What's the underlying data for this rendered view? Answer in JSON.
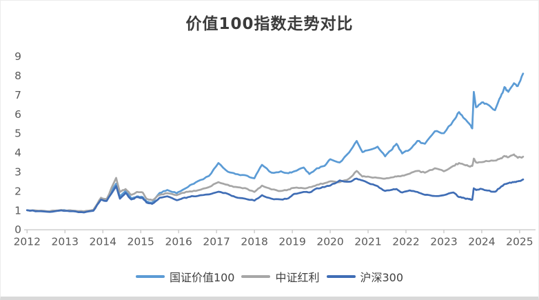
{
  "page": {
    "title": "价值100指数走势对比"
  },
  "axes": {
    "y_tick_color": "#595959",
    "x_tick_color": "#595959",
    "axis_line_color": "#c9c9c9"
  },
  "chart_data": {
    "type": "line",
    "title": "价值100指数走势对比",
    "xlabel": "",
    "ylabel": "",
    "xlim": [
      2012,
      2025.4
    ],
    "ylim": [
      0,
      9
    ],
    "grid": false,
    "legend_position": "bottom",
    "x_ticks": [
      2012,
      2013,
      2014,
      2015,
      2016,
      2017,
      2018,
      2019,
      2020,
      2021,
      2022,
      2023,
      2024,
      2025
    ],
    "y_ticks": [
      0,
      1,
      2,
      3,
      4,
      5,
      6,
      7,
      8,
      9
    ],
    "x": [
      2012.0,
      2012.3,
      2012.6,
      2012.9,
      2013.2,
      2013.5,
      2013.75,
      2013.95,
      2014.1,
      2014.35,
      2014.45,
      2014.6,
      2014.75,
      2014.9,
      2015.05,
      2015.15,
      2015.3,
      2015.5,
      2015.7,
      2015.95,
      2016.1,
      2016.3,
      2016.5,
      2016.8,
      2017.05,
      2017.3,
      2017.5,
      2017.75,
      2018.0,
      2018.2,
      2018.45,
      2018.7,
      2018.9,
      2019.05,
      2019.3,
      2019.45,
      2019.65,
      2019.85,
      2020.0,
      2020.25,
      2020.5,
      2020.7,
      2020.85,
      2021.0,
      2021.25,
      2021.45,
      2021.6,
      2021.75,
      2021.9,
      2022.1,
      2022.3,
      2022.5,
      2022.76,
      2023.0,
      2023.25,
      2023.4,
      2023.55,
      2023.67,
      2023.75,
      2023.79,
      2023.85,
      2024.0,
      2024.15,
      2024.35,
      2024.5,
      2024.6,
      2024.7,
      2024.85,
      2024.95,
      2025.09
    ],
    "series": [
      {
        "name": "国证价值100",
        "color": "#5B9BD5",
        "values": [
          1.0,
          0.96,
          0.93,
          1.0,
          0.97,
          0.92,
          1.0,
          1.6,
          1.52,
          2.38,
          1.7,
          2.0,
          1.62,
          1.72,
          1.68,
          1.45,
          1.38,
          1.9,
          2.05,
          1.88,
          2.05,
          2.3,
          2.5,
          2.78,
          3.45,
          3.0,
          2.88,
          2.82,
          2.66,
          3.36,
          2.95,
          3.02,
          2.92,
          3.02,
          3.22,
          2.88,
          3.18,
          3.3,
          3.65,
          3.48,
          4.0,
          4.6,
          4.02,
          4.12,
          4.3,
          3.8,
          4.1,
          4.45,
          3.95,
          4.15,
          4.6,
          4.45,
          5.1,
          5.0,
          5.65,
          6.1,
          5.75,
          5.5,
          5.25,
          7.15,
          6.35,
          6.6,
          6.5,
          6.2,
          6.9,
          7.4,
          7.15,
          7.6,
          7.45,
          8.1
        ]
      },
      {
        "name": "中证红利",
        "color": "#A6A6A6",
        "values": [
          1.0,
          0.97,
          0.95,
          1.01,
          0.98,
          0.94,
          1.02,
          1.65,
          1.58,
          2.68,
          1.95,
          2.1,
          1.8,
          1.95,
          1.92,
          1.6,
          1.52,
          1.8,
          1.88,
          1.78,
          1.9,
          1.98,
          2.03,
          2.2,
          2.46,
          2.32,
          2.21,
          2.15,
          1.95,
          2.28,
          2.08,
          2.0,
          2.08,
          2.16,
          2.14,
          2.2,
          2.32,
          2.4,
          2.5,
          2.46,
          2.64,
          3.04,
          2.75,
          2.75,
          2.68,
          2.64,
          2.7,
          2.75,
          2.8,
          2.9,
          3.04,
          2.95,
          3.18,
          3.02,
          3.3,
          3.45,
          3.35,
          3.28,
          3.3,
          3.68,
          3.48,
          3.5,
          3.55,
          3.58,
          3.7,
          3.82,
          3.75,
          3.9,
          3.72,
          3.78
        ]
      },
      {
        "name": "沪深300",
        "color": "#3F6DB5",
        "values": [
          1.0,
          0.95,
          0.91,
          0.99,
          0.95,
          0.88,
          0.97,
          1.55,
          1.48,
          2.25,
          1.6,
          1.9,
          1.56,
          1.68,
          1.64,
          1.4,
          1.33,
          1.65,
          1.72,
          1.52,
          1.62,
          1.7,
          1.74,
          1.82,
          1.96,
          1.85,
          1.68,
          1.6,
          1.5,
          1.78,
          1.6,
          1.56,
          1.62,
          1.85,
          1.95,
          1.92,
          2.14,
          2.2,
          2.28,
          2.55,
          2.48,
          2.64,
          2.55,
          2.42,
          2.25,
          2.0,
          2.05,
          2.1,
          1.92,
          2.03,
          1.95,
          1.8,
          1.74,
          1.78,
          1.92,
          1.68,
          1.62,
          1.57,
          1.55,
          2.14,
          2.05,
          2.1,
          2.02,
          1.96,
          2.2,
          2.35,
          2.4,
          2.46,
          2.5,
          2.6
        ]
      }
    ]
  }
}
